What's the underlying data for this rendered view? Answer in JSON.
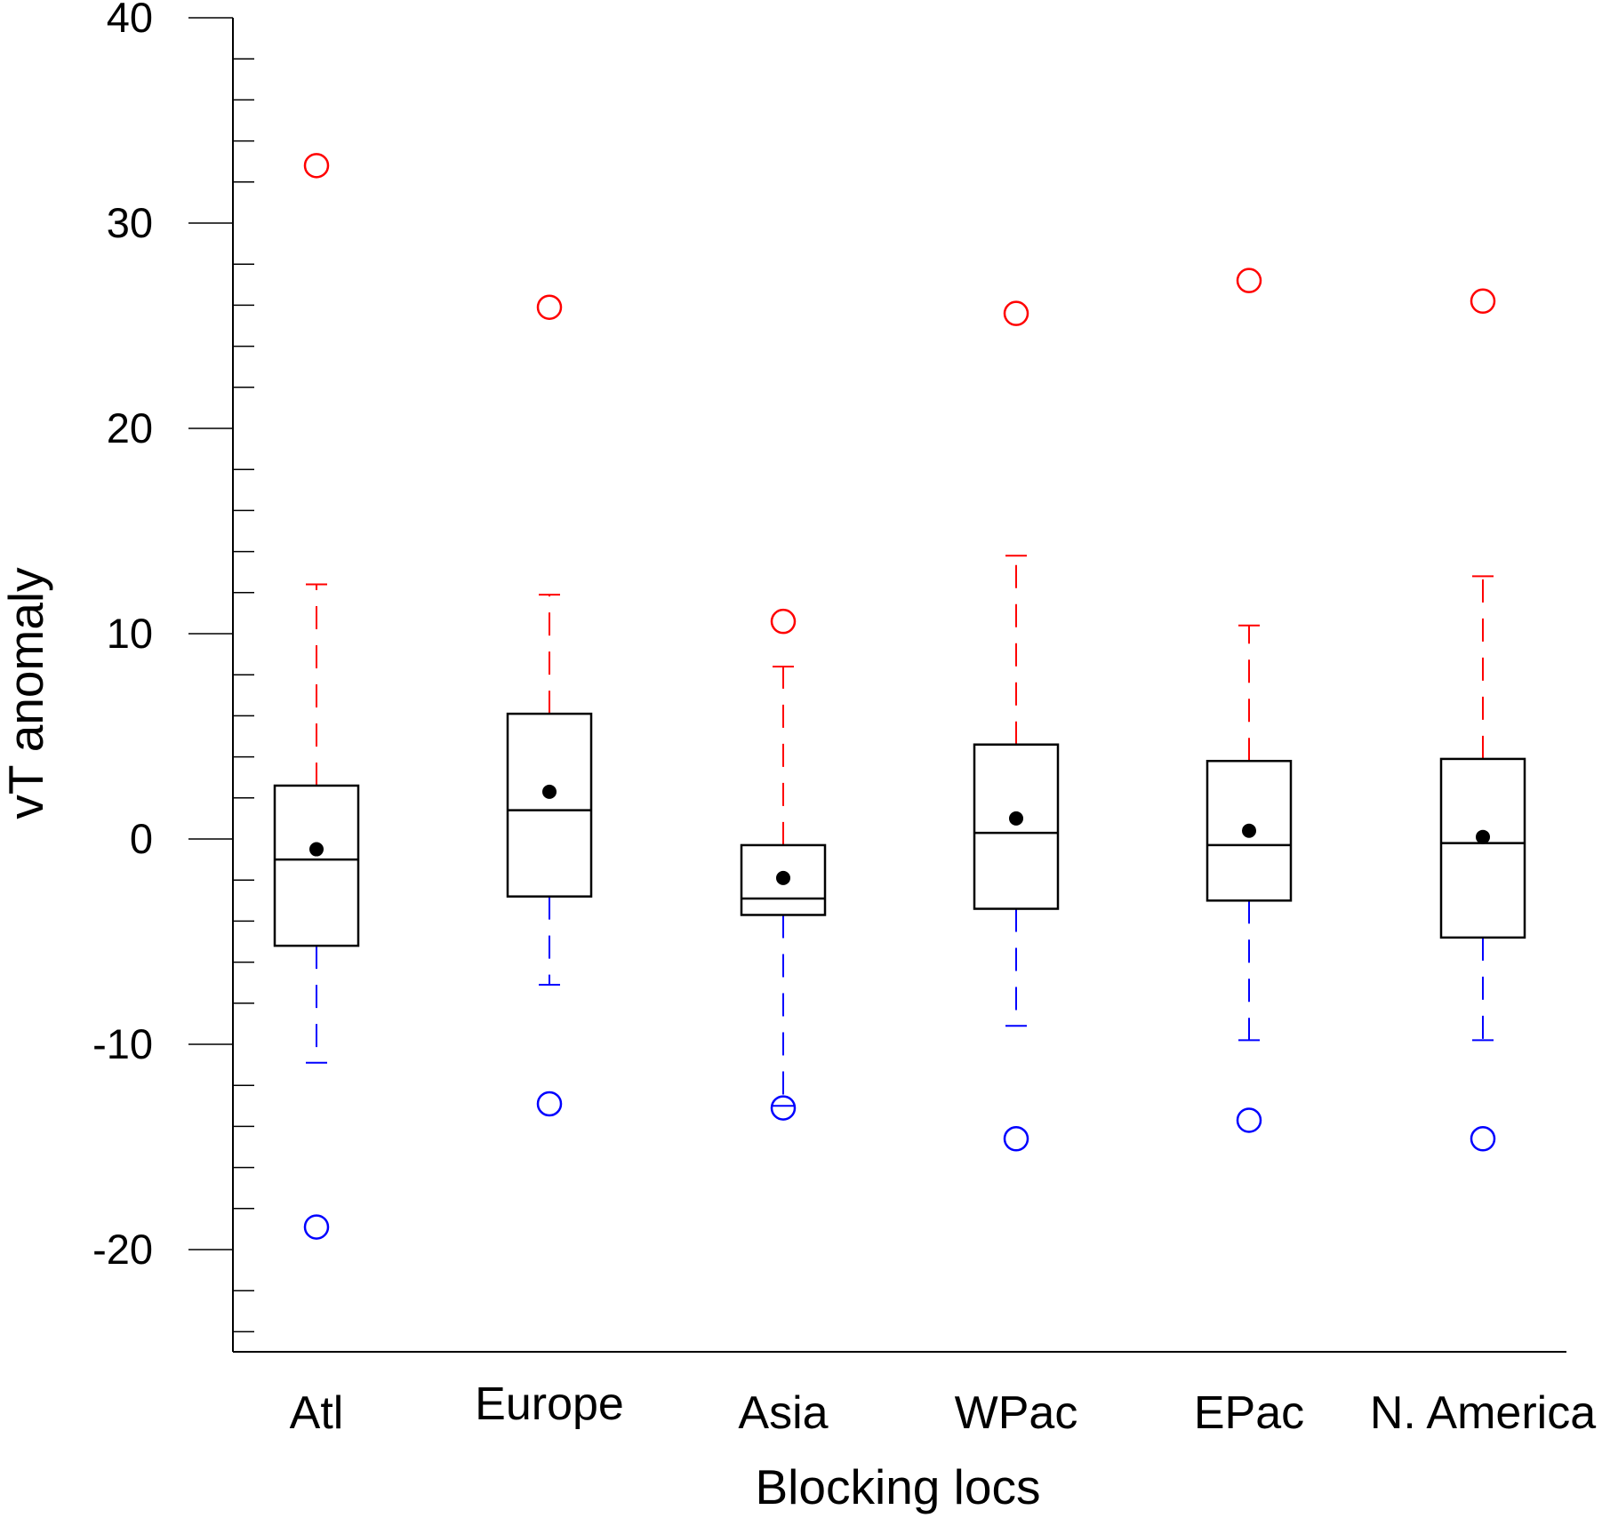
{
  "chart_data": {
    "type": "box",
    "xlabel": "Blocking locs",
    "ylabel": "vT anomaly",
    "ylim": [
      -25,
      40
    ],
    "yticks_major": [
      -20,
      -10,
      0,
      10,
      20,
      30,
      40
    ],
    "yticks_minor_step": 2,
    "colors": {
      "box": "#000000",
      "upper_whisker": "#ff0000",
      "lower_whisker": "#0000ff",
      "outlier_high": "#ff0000",
      "outlier_low": "#0000ff",
      "mean": "#000000"
    },
    "categories": [
      "Atl",
      "Europe",
      "Asia",
      "WPac",
      "EPac",
      "N. America"
    ],
    "boxes": [
      {
        "category": "Atl",
        "whisker_low": -10.9,
        "q1": -5.2,
        "median": -1.0,
        "q3": 2.6,
        "whisker_high": 12.4,
        "mean": -0.5,
        "outliers_high": [
          32.8
        ],
        "outliers_low": [
          -18.9
        ]
      },
      {
        "category": "Europe",
        "whisker_low": -7.1,
        "q1": -2.8,
        "median": 1.4,
        "q3": 6.1,
        "whisker_high": 11.9,
        "mean": 2.3,
        "outliers_high": [
          25.9
        ],
        "outliers_low": [
          -12.9
        ]
      },
      {
        "category": "Asia",
        "whisker_low": -13.0,
        "q1": -3.7,
        "median": -2.9,
        "q3": -0.3,
        "whisker_high": 8.4,
        "mean": -1.9,
        "outliers_high": [
          10.6
        ],
        "outliers_low": [
          -13.1
        ]
      },
      {
        "category": "WPac",
        "whisker_low": -9.1,
        "q1": -3.4,
        "median": 0.3,
        "q3": 4.6,
        "whisker_high": 13.8,
        "mean": 1.0,
        "outliers_high": [
          25.6
        ],
        "outliers_low": [
          -14.6
        ]
      },
      {
        "category": "EPac",
        "whisker_low": -9.8,
        "q1": -3.0,
        "median": -0.3,
        "q3": 3.8,
        "whisker_high": 10.4,
        "mean": 0.4,
        "outliers_high": [
          27.2
        ],
        "outliers_low": [
          -13.7
        ]
      },
      {
        "category": "N. America",
        "whisker_low": -9.8,
        "q1": -4.8,
        "median": -0.2,
        "q3": 3.9,
        "whisker_high": 12.8,
        "mean": 0.1,
        "outliers_high": [
          26.2
        ],
        "outliers_low": [
          -14.6
        ]
      }
    ]
  }
}
